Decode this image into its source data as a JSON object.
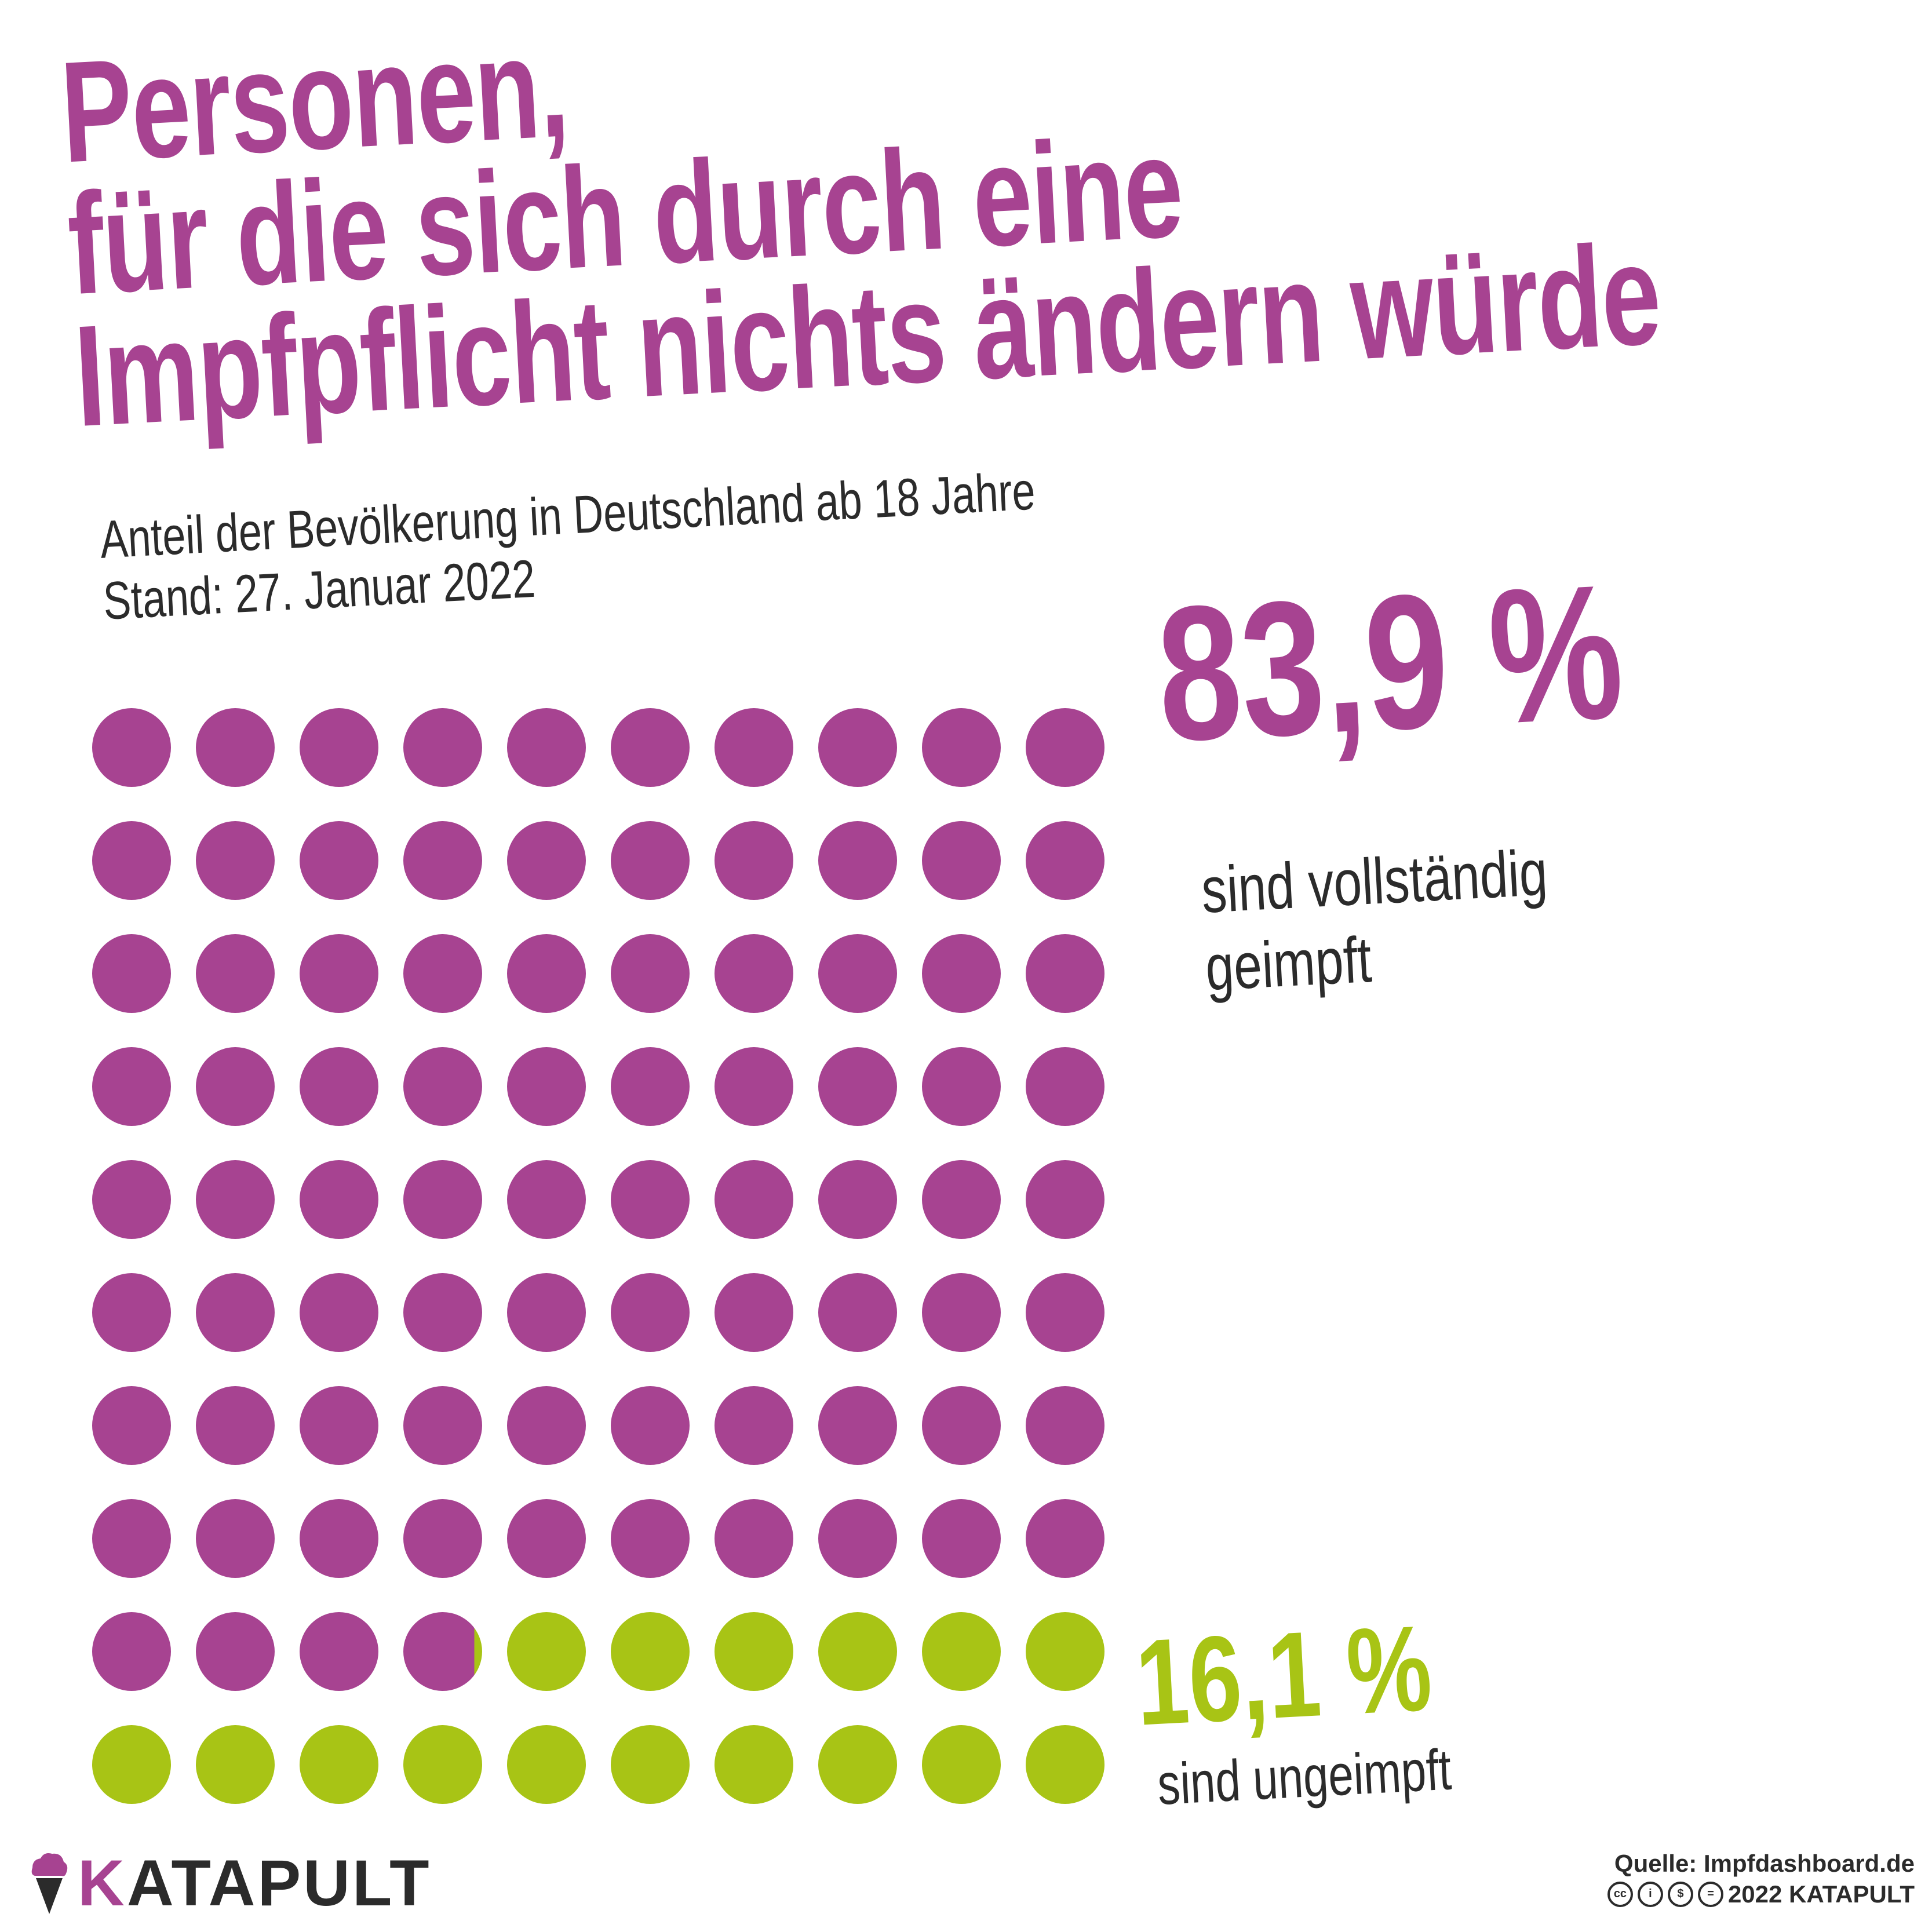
{
  "title": {
    "line1": "Personen,",
    "line2": "für die sich durch eine",
    "line3": "Impfpflicht nichts ändern würde"
  },
  "subtitle": {
    "line1": "Anteil der Bevölkerung in Deutschland ab 18 Jahre",
    "line2": "Stand: 27. Januar 2022"
  },
  "vaccinated": {
    "percent_label": "83,9 %",
    "label_line1": "sind vollständig",
    "label_line2": "geimpft"
  },
  "unvaccinated": {
    "percent_label": "16,1 %",
    "label": "sind ungeimpft"
  },
  "colors": {
    "vaccinated": "#a74391",
    "unvaccinated": "#a8c415",
    "text": "#2b2b2b"
  },
  "chart_data": {
    "type": "waffle",
    "title": "Personen, für die sich durch eine Impfpflicht nichts ändern würde",
    "subtitle": "Anteil der Bevölkerung in Deutschland ab 18 Jahre",
    "grid": {
      "rows": 10,
      "cols": 10
    },
    "unit": "%",
    "series": [
      {
        "name": "sind vollständig geimpft",
        "value": 83.9,
        "color": "#a74391"
      },
      {
        "name": "sind ungeimpft",
        "value": 16.1,
        "color": "#a8c415"
      }
    ]
  },
  "footer": {
    "logo_k": "K",
    "logo_rest": "ATAPULT",
    "source": "Quelle: Impfdashboard.de",
    "copyright": "2022 KATAPULT",
    "license_icons": [
      "cc-icon",
      "by-icon",
      "nc-icon",
      "nd-icon"
    ]
  }
}
